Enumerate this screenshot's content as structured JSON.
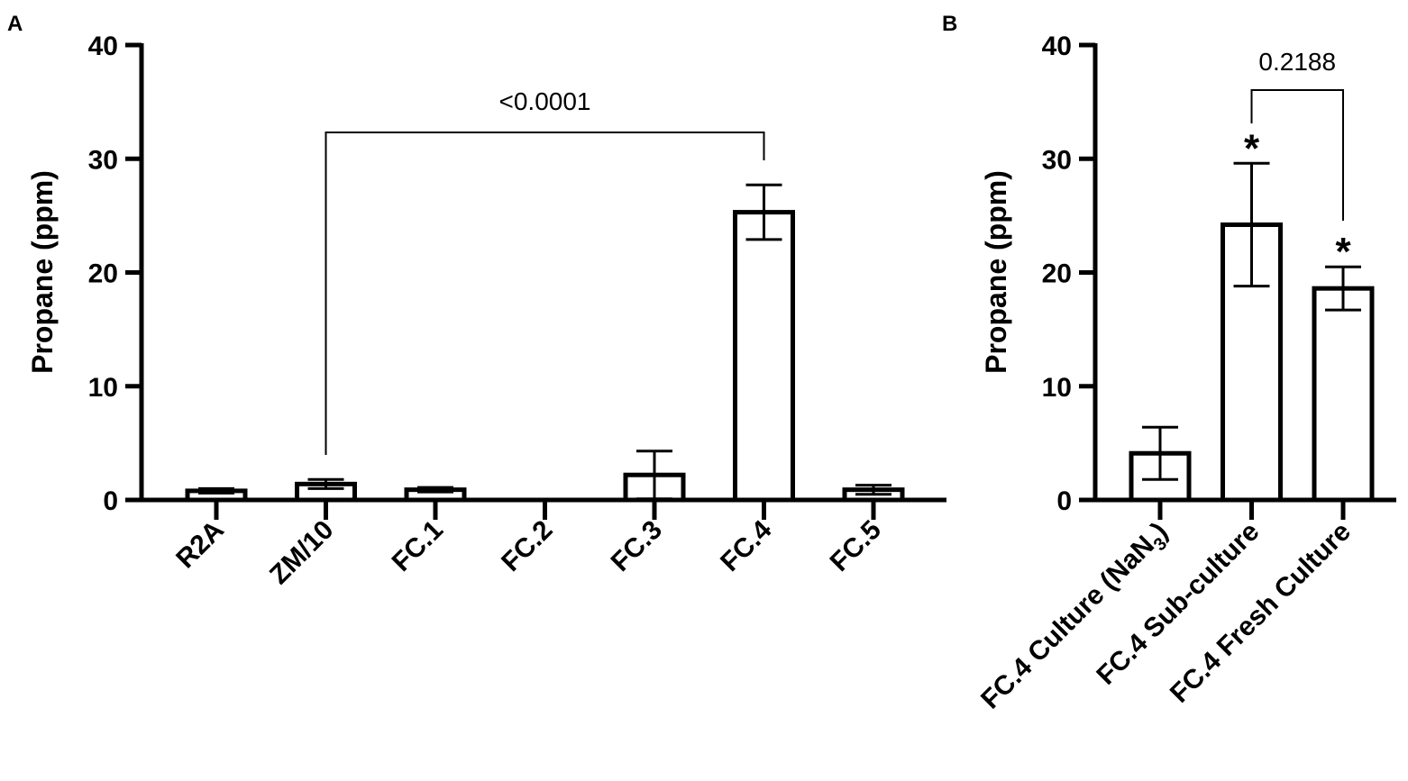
{
  "chart_data": [
    {
      "type": "bar",
      "panel": "A",
      "ylabel": "Propane (ppm)",
      "ylim": [
        0,
        40
      ],
      "yticks": [
        "0",
        "10",
        "20",
        "30",
        "40"
      ],
      "categories": [
        "R2A",
        "ZM/10",
        "FC.1",
        "FC.2",
        "FC.3",
        "FC.4",
        "FC.5"
      ],
      "values": [
        0.8,
        1.4,
        0.9,
        0,
        2.2,
        25.3,
        0.9
      ],
      "errors": [
        0.2,
        0.4,
        0.2,
        0,
        2.1,
        2.4,
        0.4
      ],
      "comparisons": [
        {
          "from": "ZM/10",
          "to": "FC.4",
          "label": "<0.0001"
        }
      ],
      "annotations": []
    },
    {
      "type": "bar",
      "panel": "B",
      "ylabel": "Propane (ppm)",
      "ylim": [
        0,
        40
      ],
      "yticks": [
        "0",
        "10",
        "20",
        "30",
        "40"
      ],
      "categories": [
        {
          "text": "FC.4 Culture (NaN",
          "sub": "3",
          "tail": ")"
        },
        {
          "text": "FC.4 Sub-culture",
          "sub": "",
          "tail": ""
        },
        {
          "text": "FC.4 Fresh Culture",
          "sub": "",
          "tail": ""
        }
      ],
      "values": [
        4.1,
        24.2,
        18.6
      ],
      "errors": [
        2.3,
        5.4,
        1.9
      ],
      "comparisons": [
        {
          "from": "FC.4 Sub-culture",
          "to": "FC.4 Fresh Culture",
          "label": "0.2188"
        }
      ],
      "annotations": [
        {
          "category": "FC.4 Sub-culture",
          "text": "*"
        },
        {
          "category": "FC.4 Fresh Culture",
          "text": "*"
        }
      ]
    }
  ]
}
